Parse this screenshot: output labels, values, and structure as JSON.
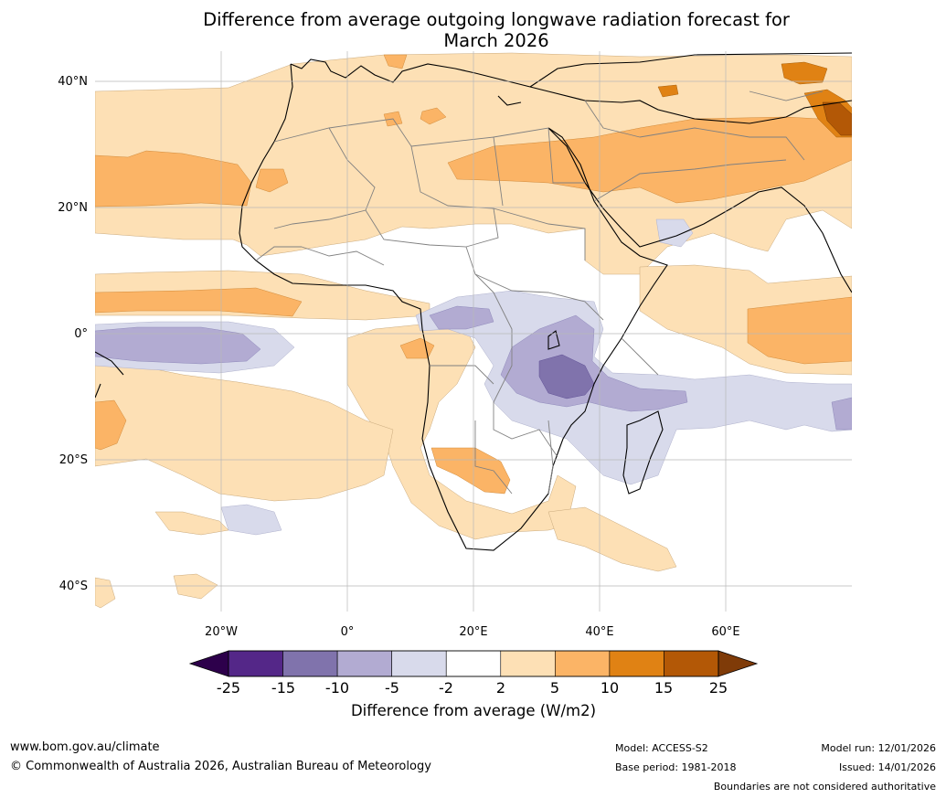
{
  "title_line1": "Difference from average outgoing longwave radiation forecast for",
  "title_line2": "March 2026",
  "map": {
    "lat_labels": [
      "40°N",
      "20°N",
      "0°",
      "20°S",
      "40°S"
    ],
    "lon_labels": [
      "20°W",
      "0°",
      "20°E",
      "40°E",
      "60°E"
    ],
    "colors": {
      "p2_5": "#fde0b5",
      "p5_10": "#fbb466",
      "p10_15": "#e08214",
      "p15_25": "#b35806",
      "p25": "#7f3b08",
      "n2_5": "#d8daeb",
      "n5_10": "#b2abd2",
      "n10_15": "#8073ac",
      "n15_25": "#542788",
      "n25": "#2d004b"
    }
  },
  "colorbar": {
    "ticks": [
      "-25",
      "-15",
      "-10",
      "-5",
      "-2",
      "2",
      "5",
      "10",
      "15",
      "25"
    ],
    "colors": [
      "#542788",
      "#8073ac",
      "#b2abd2",
      "#d8daeb",
      "#ffffff",
      "#fde0b5",
      "#fbb466",
      "#e08214",
      "#b35806"
    ],
    "low_extend_color": "#2d004b",
    "high_extend_color": "#7f3b08",
    "label": "Difference from average (W/m2)"
  },
  "footer": {
    "website": "www.bom.gov.au/climate",
    "copyright": "© Commonwealth of Australia 2026, Australian Bureau of Meteorology",
    "model": "Model: ACCESS-S2",
    "base_period": "Base period: 1981-2018",
    "model_run": "Model run: 12/01/2026",
    "issued": "Issued: 14/01/2026",
    "disclaimer": "Boundaries are not considered authoritative"
  }
}
